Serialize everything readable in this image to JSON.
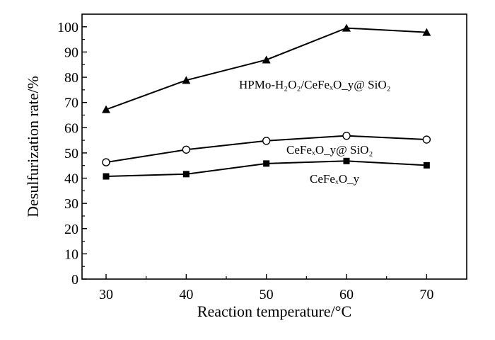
{
  "chart_data": {
    "type": "line",
    "xlabel": "Reaction temperature/°C",
    "ylabel": "Desulfurization rate/%",
    "xlim": [
      27,
      75
    ],
    "ylim": [
      0,
      105
    ],
    "x_ticks": [
      30,
      40,
      50,
      60,
      70
    ],
    "y_ticks": [
      0,
      10,
      20,
      30,
      40,
      50,
      60,
      70,
      80,
      90,
      100
    ],
    "grid": false,
    "legend": "none (series labelled inline)",
    "x": [
      30,
      40,
      50,
      60,
      70
    ],
    "series": [
      {
        "name": "HPMo-H₂O₂/CeFeₓO_y@ SiO₂",
        "marker": "filled-triangle",
        "values": [
          67.2,
          78.8,
          86.9,
          99.5,
          97.8
        ]
      },
      {
        "name": "CeFeₓO_y@ SiO₂",
        "marker": "open-circle",
        "values": [
          46.3,
          51.3,
          54.8,
          56.8,
          55.3
        ]
      },
      {
        "name": "CeFeₓO_y",
        "marker": "filled-square",
        "values": [
          40.7,
          41.6,
          45.8,
          46.8,
          45.1
        ]
      }
    ],
    "colors": {
      "line": "#000000",
      "background": "#ffffff"
    }
  }
}
